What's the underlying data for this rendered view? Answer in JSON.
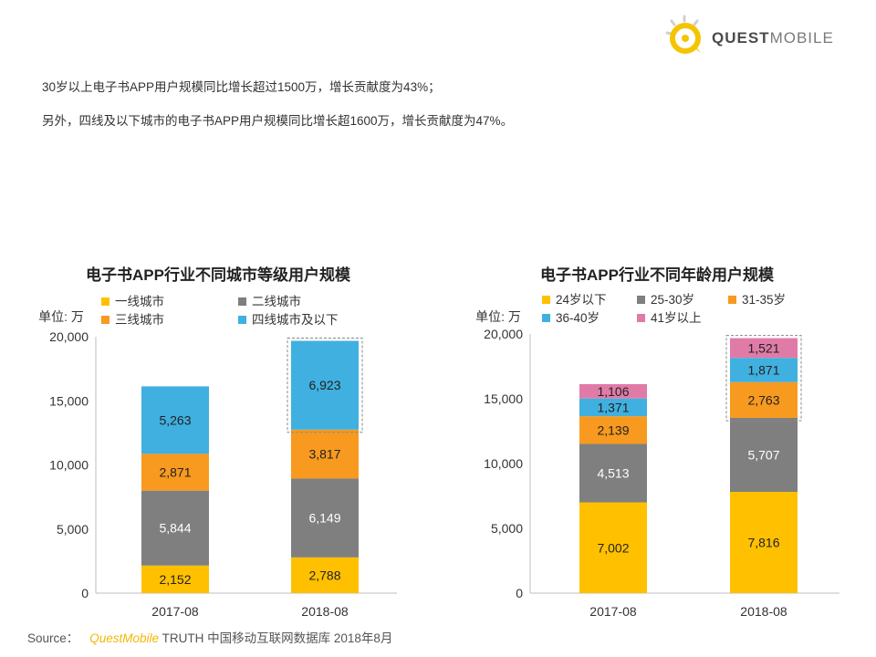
{
  "logo": {
    "brand_quest": "QUEST",
    "brand_mobile": "MOBILE",
    "accent": "#f5c400"
  },
  "intro": {
    "line1": "30岁以上电子书APP用户规模同比增长超过1500万，增长贡献度为43%；",
    "line2": "另外，四线及以下城市的电子书APP用户规模同比增长超1600万，增长贡献度为47%。"
  },
  "source": {
    "prefix": "Source：",
    "brand": "QuestMobile",
    "suffix": "TRUTH 中国移动互联网数据库 2018年8月"
  },
  "chart_data": [
    {
      "type": "bar",
      "stacked": true,
      "title": "电子书APP行业不同城市等级用户规模",
      "ylabel": "单位: 万",
      "ylim": [
        0,
        20000
      ],
      "yticks": [
        "0",
        "5,000",
        "10,000",
        "15,000",
        "20,000"
      ],
      "categories": [
        "2017-08",
        "2018-08"
      ],
      "legend_placement": "top",
      "highlight": {
        "category": "2018-08",
        "series": "四线城市及以下"
      },
      "series": [
        {
          "name": "一线城市",
          "color": "#ffc000",
          "values": [
            2152,
            2788
          ],
          "labels": [
            "2,152",
            "2,788"
          ]
        },
        {
          "name": "二线城市",
          "color": "#7f7f7f",
          "values": [
            5844,
            6149
          ],
          "labels": [
            "5,844",
            "6,149"
          ]
        },
        {
          "name": "三线城市",
          "color": "#f79a1f",
          "values": [
            2871,
            3817
          ],
          "labels": [
            "2,871",
            "3,817"
          ]
        },
        {
          "name": "四线城市及以下",
          "color": "#40b0e0",
          "values": [
            5263,
            6923
          ],
          "labels": [
            "5,263",
            "6,923"
          ]
        }
      ]
    },
    {
      "type": "bar",
      "stacked": true,
      "title": "电子书APP行业不同年龄用户规模",
      "ylabel": "单位: 万",
      "ylim": [
        0,
        20000
      ],
      "yticks": [
        "0",
        "5,000",
        "10,000",
        "15,000",
        "20,000"
      ],
      "categories": [
        "2017-08",
        "2018-08"
      ],
      "legend_placement": "top",
      "highlight": {
        "category": "2018-08",
        "series_from": "31-35岁",
        "series_to": "41岁以上"
      },
      "series": [
        {
          "name": "24岁以下",
          "color": "#ffc000",
          "values": [
            7002,
            7816
          ],
          "labels": [
            "7,002",
            "7,816"
          ]
        },
        {
          "name": "25-30岁",
          "color": "#7f7f7f",
          "values": [
            4513,
            5707
          ],
          "labels": [
            "4,513",
            "5,707"
          ]
        },
        {
          "name": "31-35岁",
          "color": "#f79a1f",
          "values": [
            2139,
            2763
          ],
          "labels": [
            "2,139",
            "2,763"
          ]
        },
        {
          "name": "36-40岁",
          "color": "#40b0e0",
          "values": [
            1371,
            1871
          ],
          "labels": [
            "1,371",
            "1,871"
          ]
        },
        {
          "name": "41岁以上",
          "color": "#e07ba8",
          "values": [
            1106,
            1521
          ],
          "labels": [
            "1,106",
            "1,521"
          ]
        }
      ]
    }
  ]
}
